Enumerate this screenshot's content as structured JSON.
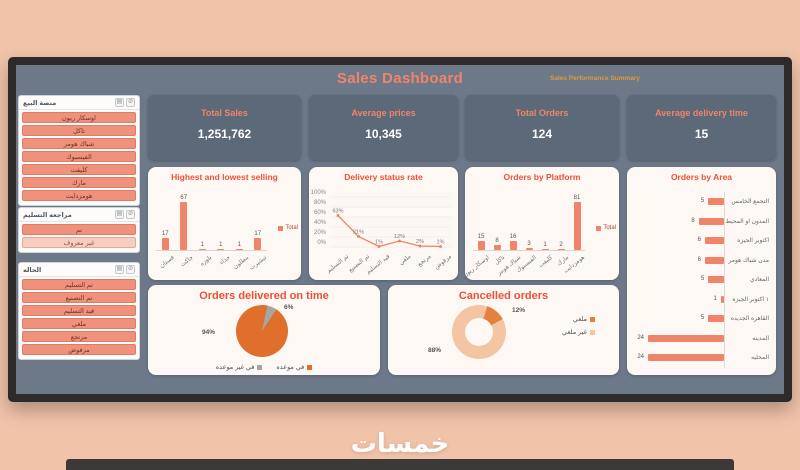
{
  "header": {
    "title": "Sales Dashboard",
    "subtitle": "Sales Performance Summary"
  },
  "watermark": "خمسات",
  "icons": {
    "multi_select_icon": "▤",
    "clear_filter_icon": "⊘"
  },
  "colors": {
    "accent": "#f0846a",
    "chart_title": "#ee4f35",
    "dashboard_bg": "#6d7988",
    "kpi_bg": "#5c6978"
  },
  "kpis": [
    {
      "label": "Total Sales",
      "value": "1,251,762"
    },
    {
      "label": "Average prices",
      "value": "10,345"
    },
    {
      "label": "Total Orders",
      "value": "124"
    },
    {
      "label": "Average delivery time",
      "value": "15"
    }
  ],
  "slicers": [
    {
      "title": "منصة البيع",
      "items": [
        {
          "label": "اوسكار ريون",
          "selected": true
        },
        {
          "label": "تاكل",
          "selected": true
        },
        {
          "label": "شباك هومر",
          "selected": true
        },
        {
          "label": "الفيسبوك",
          "selected": true
        },
        {
          "label": "كليفت",
          "selected": true
        },
        {
          "label": "مارك",
          "selected": true
        },
        {
          "label": "هومزدايت",
          "selected": true
        }
      ]
    },
    {
      "title": "مراجعه التسليم",
      "items": [
        {
          "label": "تم",
          "selected": true
        },
        {
          "label": "غير معروف",
          "selected": false
        }
      ]
    },
    {
      "title": "الحاله",
      "items": [
        {
          "label": "تم التسليم",
          "selected": true
        },
        {
          "label": "تم التصنيع",
          "selected": true
        },
        {
          "label": "قيد التسليم",
          "selected": true
        },
        {
          "label": "ملغي",
          "selected": true
        },
        {
          "label": "مرتجع",
          "selected": true
        },
        {
          "label": "مرفوض",
          "selected": true
        }
      ]
    }
  ],
  "chart_data": [
    {
      "type": "bar",
      "title": "Highest and lowest selling",
      "categories": [
        "فستان",
        "جاكت",
        "بلوزه",
        "حذاء",
        "بنطلون",
        "تيشيرت"
      ],
      "values": [
        17,
        67,
        1,
        1,
        1,
        17
      ],
      "legend": [
        "Total"
      ],
      "color": "#f0846a",
      "ylim": [
        0,
        70
      ]
    },
    {
      "type": "line",
      "title": "Delivery status rate",
      "categories": [
        "تم التسليم",
        "تم التصنيع",
        "قيد التسليم",
        "ملغي",
        "مرتجع",
        "مرفوض"
      ],
      "values": [
        63,
        21,
        1,
        12,
        2,
        1
      ],
      "value_labels": [
        "63%",
        "21%",
        "1%",
        "12%",
        "2%",
        "1%"
      ],
      "yticks": [
        "100%",
        "80%",
        "60%",
        "40%",
        "20%",
        "0%"
      ],
      "ylim": [
        0,
        100
      ],
      "grid": true,
      "color": "#f0846a"
    },
    {
      "type": "bar",
      "title": "Orders by Platform",
      "categories": [
        "اوسكار ريون",
        "تاكل",
        "شباك هومر",
        "الفيسبوك",
        "كليفت",
        "مارك",
        "هومزدايت"
      ],
      "values": [
        15,
        8,
        16,
        3,
        1,
        2,
        81
      ],
      "legend": [
        "Total"
      ],
      "color": "#f0846a",
      "ylim": [
        0,
        90
      ]
    },
    {
      "type": "horizontal-bar",
      "title": "Orders by Area",
      "categories": [
        "التجمع الخامس",
        "المدون او المحيط",
        "اكتوبر الجيزه",
        "مدن شباك هومر",
        "المعادي",
        "١ اكتوبر الجيزه",
        "القاهره الجديده",
        "المدينه",
        "المحليه"
      ],
      "values": [
        5,
        8,
        6,
        6,
        5,
        1,
        5,
        24,
        24
      ],
      "color": "#f0846a",
      "xlim": [
        0,
        24
      ]
    },
    {
      "type": "pie",
      "title": "Orders delivered on time",
      "slices": [
        {
          "label": "في غير موعده",
          "value": 6,
          "pct_label": "6%",
          "color": "#a9a59f"
        },
        {
          "label": "في موعده",
          "value": 94,
          "pct_label": "94%",
          "color": "#e06f2c"
        }
      ],
      "legend_position": "bottom"
    },
    {
      "type": "donut",
      "title": "Cancelled orders",
      "slices": [
        {
          "label": "ملغي",
          "value": 12,
          "pct_label": "12%",
          "color": "#e5813e"
        },
        {
          "label": "غير ملغي",
          "value": 88,
          "pct_label": "88%",
          "color": "#f3c5a3"
        }
      ],
      "legend_position": "right"
    }
  ]
}
